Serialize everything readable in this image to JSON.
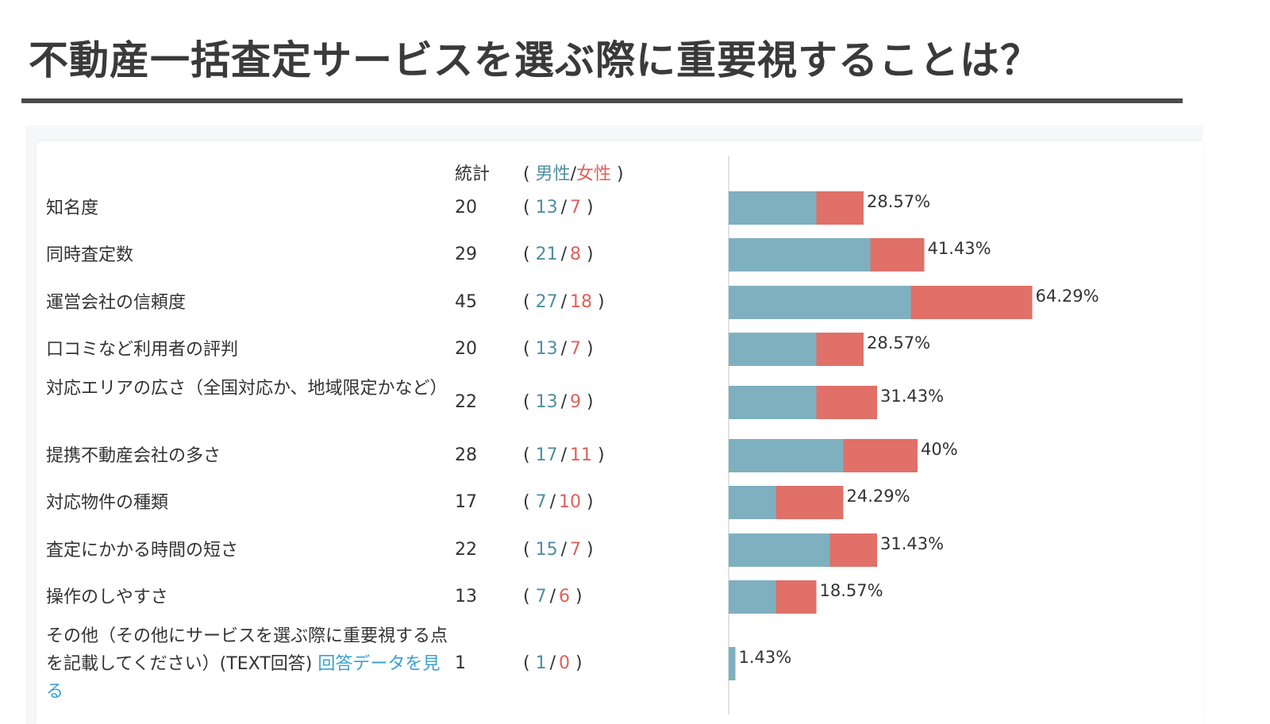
{
  "page": {
    "title": "不動産一括査定サービスを選ぶ際に重要視することは？"
  },
  "table_header": {
    "count_label": "統計",
    "open_paren": "(",
    "male_label": "男性",
    "slash": "/",
    "female_label": "女性",
    "close_paren": ")"
  },
  "colors": {
    "male": "#7fb0bf",
    "female": "#e07068",
    "link": "#3ba0d0"
  },
  "other_link_text": "回答データを見る",
  "chart_data": {
    "type": "bar",
    "stacked": true,
    "orientation": "horizontal",
    "categories": [
      "知名度",
      "同時査定数",
      "運営会社の信頼度",
      "口コミなど利用者の評判",
      "対応エリアの広さ（全国対応か、地域限定かなど）",
      "提携不動産会社の多さ",
      "対応物件の種類",
      "査定にかかる時間の短さ",
      "操作のしやすさ",
      "その他（その他にサービスを選ぶ際に重要視する点を記載してください）(TEXT回答) "
    ],
    "totals": [
      20,
      29,
      45,
      20,
      22,
      28,
      17,
      22,
      13,
      1
    ],
    "series": [
      {
        "name": "男性",
        "values": [
          13,
          21,
          27,
          13,
          13,
          17,
          7,
          15,
          7,
          1
        ]
      },
      {
        "name": "女性",
        "values": [
          7,
          8,
          18,
          7,
          9,
          11,
          10,
          7,
          6,
          0
        ]
      }
    ],
    "percent_labels": [
      "28.57%",
      "41.43%",
      "64.29%",
      "28.57%",
      "31.43%",
      "40%",
      "24.29%",
      "31.43%",
      "18.57%",
      "1.43%"
    ],
    "xlim": [
      0,
      70
    ],
    "legend": "header"
  }
}
